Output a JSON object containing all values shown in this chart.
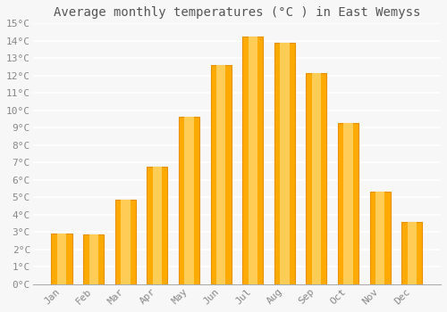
{
  "title": "Average monthly temperatures (°C ) in East Wemyss",
  "months": [
    "Jan",
    "Feb",
    "Mar",
    "Apr",
    "May",
    "Jun",
    "Jul",
    "Aug",
    "Sep",
    "Oct",
    "Nov",
    "Dec"
  ],
  "values": [
    2.9,
    2.85,
    4.85,
    6.75,
    9.65,
    12.6,
    14.25,
    13.9,
    12.15,
    9.25,
    5.35,
    3.6
  ],
  "bar_color": "#FFAA00",
  "bar_edge_color": "#E89000",
  "bar_highlight": "#FFCC55",
  "background_color": "#F7F7F7",
  "grid_color": "#FFFFFF",
  "ylim": [
    0,
    15
  ],
  "yticks": [
    0,
    1,
    2,
    3,
    4,
    5,
    6,
    7,
    8,
    9,
    10,
    11,
    12,
    13,
    14,
    15
  ],
  "title_fontsize": 10,
  "tick_fontsize": 8,
  "tick_color": "#888888"
}
